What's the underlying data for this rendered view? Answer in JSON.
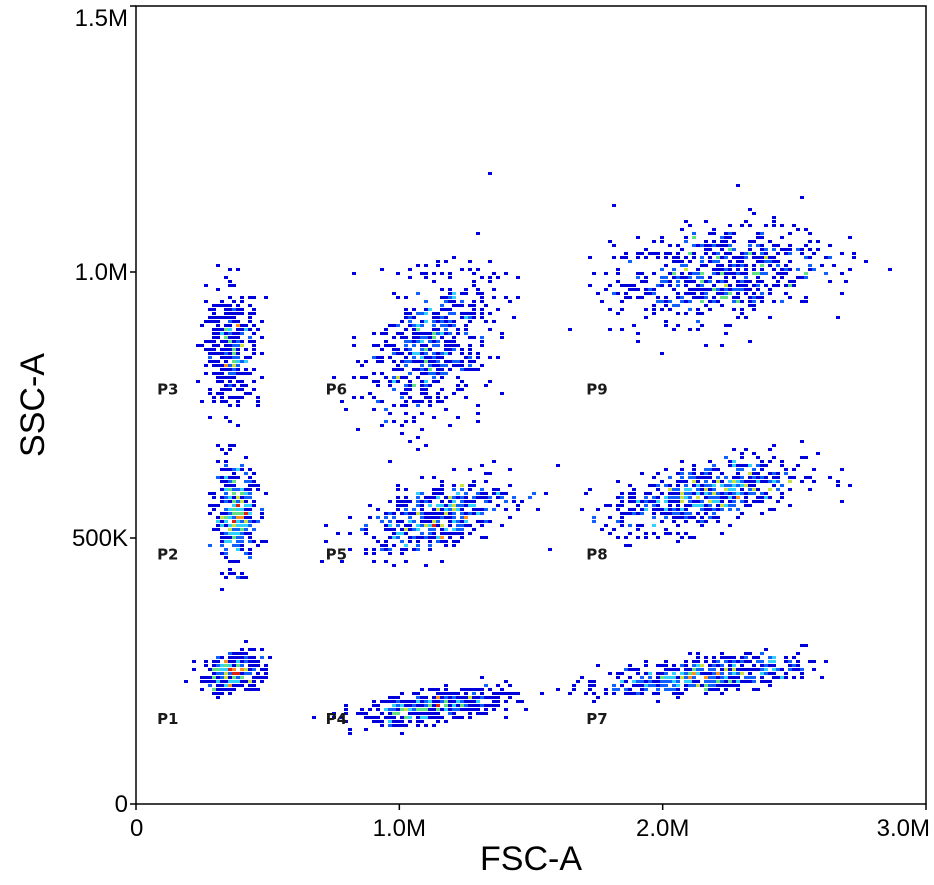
{
  "chart_data": {
    "type": "scatter",
    "title": "",
    "xlabel": "FSC-A",
    "ylabel": "SSC-A",
    "xlim": [
      0,
      3000000
    ],
    "ylim": [
      0,
      1500000
    ],
    "grid": false,
    "x_ticks": [
      {
        "value": 0,
        "label": "0"
      },
      {
        "value": 1000000,
        "label": "1.0M"
      },
      {
        "value": 2000000,
        "label": "2.0M"
      },
      {
        "value": 3000000,
        "label": "3.0M"
      }
    ],
    "y_ticks": [
      {
        "value": 0,
        "label": "0"
      },
      {
        "value": 500000,
        "label": "500K"
      },
      {
        "value": 1000000,
        "label": "1.0M"
      },
      {
        "value": 1500000,
        "label": "1.5M"
      }
    ],
    "density_colors": [
      "#0000dd",
      "#1060ff",
      "#30d0ff",
      "#60e080",
      "#c8e040",
      "#ff9020",
      "#e02010"
    ],
    "populations": [
      {
        "label": "P1",
        "label_x": 80000,
        "label_y": 150000,
        "center_x": 360000,
        "center_y": 250000,
        "spread_x": 55000,
        "spread_y": 18000,
        "tilt": 0.15,
        "count": 320,
        "peak": 6
      },
      {
        "label": "P2",
        "label_x": 80000,
        "label_y": 460000,
        "center_x": 370000,
        "center_y": 545000,
        "spread_x": 40000,
        "spread_y": 45000,
        "tilt": 0.0,
        "count": 380,
        "peak": 6
      },
      {
        "label": "P3",
        "label_x": 80000,
        "label_y": 770000,
        "center_x": 360000,
        "center_y": 860000,
        "spread_x": 50000,
        "spread_y": 55000,
        "tilt": 0.0,
        "count": 380,
        "peak": 5
      },
      {
        "label": "P4",
        "label_x": 720000,
        "label_y": 150000,
        "center_x": 1120000,
        "center_y": 185000,
        "spread_x": 150000,
        "spread_y": 14000,
        "tilt": 0.13,
        "count": 450,
        "peak": 6
      },
      {
        "label": "P5",
        "label_x": 720000,
        "label_y": 460000,
        "center_x": 1140000,
        "center_y": 545000,
        "spread_x": 140000,
        "spread_y": 30000,
        "tilt": 0.25,
        "count": 480,
        "peak": 6
      },
      {
        "label": "P6",
        "label_x": 720000,
        "label_y": 770000,
        "center_x": 1110000,
        "center_y": 860000,
        "spread_x": 120000,
        "spread_y": 65000,
        "tilt": 0.45,
        "count": 560,
        "peak": 4
      },
      {
        "label": "P7",
        "label_x": 1710000,
        "label_y": 150000,
        "center_x": 2150000,
        "center_y": 245000,
        "spread_x": 190000,
        "spread_y": 16000,
        "tilt": 0.1,
        "count": 480,
        "peak": 5
      },
      {
        "label": "P8",
        "label_x": 1710000,
        "label_y": 460000,
        "center_x": 2160000,
        "center_y": 585000,
        "spread_x": 180000,
        "spread_y": 30000,
        "tilt": 0.2,
        "count": 620,
        "peak": 5
      },
      {
        "label": "P9",
        "label_x": 1710000,
        "label_y": 770000,
        "center_x": 2200000,
        "center_y": 1000000,
        "spread_x": 200000,
        "spread_y": 45000,
        "tilt": 0.15,
        "count": 620,
        "peak": 4
      }
    ]
  }
}
